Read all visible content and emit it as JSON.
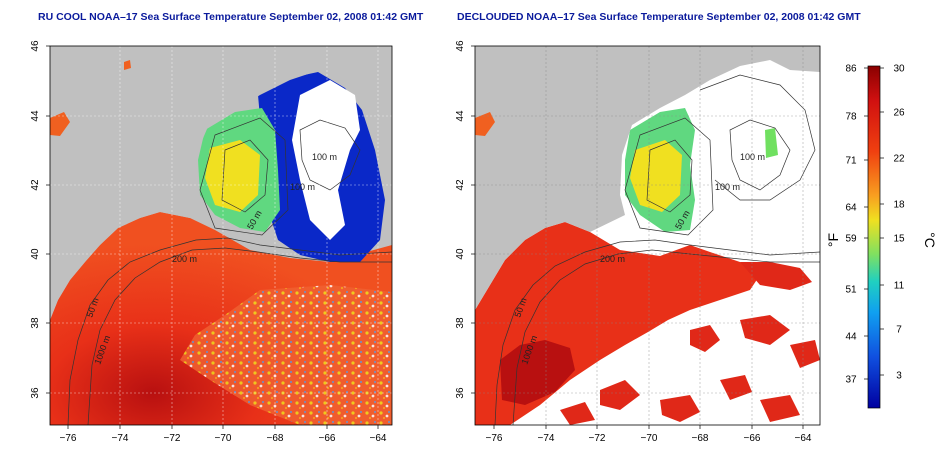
{
  "left_map": {
    "title": "RU COOL NOAA–17 Sea Surface Temperature September 02, 2008 01:42 GMT",
    "contour_labels": [
      "100 m",
      "100 m",
      "50 m",
      "200 m",
      "50 m",
      "1000 m"
    ]
  },
  "right_map": {
    "title": "DECLOUDED NOAA–17 Sea Surface Temperature September 02, 2008 01:42 GMT",
    "contour_labels": [
      "100 m",
      "100 m",
      "50 m",
      "200 m",
      "50 m",
      "1000 m"
    ]
  },
  "axes": {
    "lat_ticks": [
      "46",
      "44",
      "42",
      "40",
      "38",
      "36"
    ],
    "lon_ticks": [
      "−76",
      "−74",
      "−72",
      "−70",
      "−68",
      "−66",
      "−64"
    ]
  },
  "colorbar": {
    "fahrenheit_label": "°F",
    "celsius_label": "°C",
    "fahrenheit_ticks": [
      "86",
      "78",
      "71",
      "64",
      "59",
      "51",
      "44",
      "37"
    ],
    "celsius_ticks": [
      "30",
      "26",
      "22",
      "18",
      "15",
      "11",
      "7",
      "3"
    ]
  },
  "colors": {
    "land": "#c0c0c0",
    "title": "#0a1a9c",
    "warm": "#e83018",
    "hot": "#b81010",
    "cold": "#0a28c8",
    "mid": "#f0c820"
  }
}
